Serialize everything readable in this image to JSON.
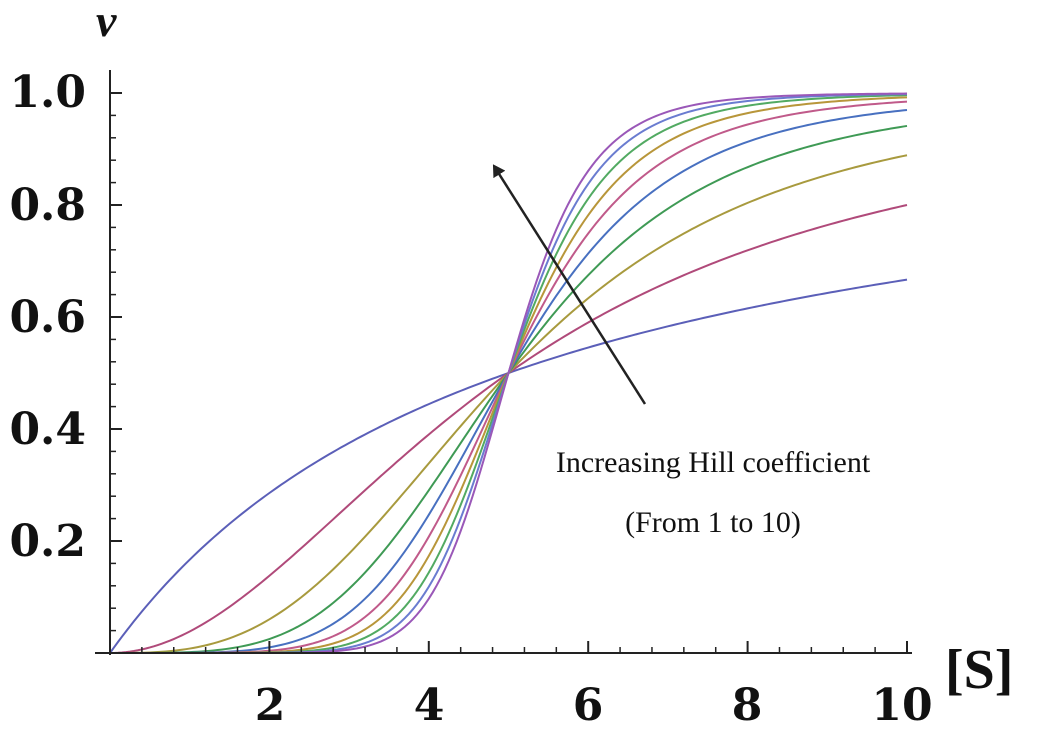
{
  "chart_data": {
    "type": "line",
    "title": "",
    "xlabel": "[S]",
    "ylabel": "v",
    "xlim": [
      0,
      10
    ],
    "ylim": [
      0,
      1
    ],
    "x_ticks": [
      "2",
      "4",
      "6",
      "8",
      "10"
    ],
    "y_ticks": [
      "0.2",
      "0.4",
      "0.6",
      "0.8",
      "1.0"
    ],
    "grid": false,
    "legend": "none",
    "series_function": "v = [S]^n / (5^n + [S]^n)",
    "x_samples": [
      0,
      0.5,
      1,
      1.5,
      2,
      2.5,
      3,
      3.5,
      4,
      4.5,
      5,
      5.5,
      6,
      6.5,
      7,
      7.5,
      8,
      8.5,
      9,
      9.5,
      10
    ],
    "series": [
      {
        "hill_n": 1,
        "color": "#5b5fb8",
        "values": [
          0,
          0.091,
          0.167,
          0.231,
          0.286,
          0.333,
          0.375,
          0.412,
          0.444,
          0.474,
          0.5,
          0.524,
          0.545,
          0.565,
          0.583,
          0.6,
          0.615,
          0.63,
          0.643,
          0.655,
          0.667
        ]
      },
      {
        "hill_n": 2,
        "color": "#b04a7a",
        "values": [
          0,
          0.01,
          0.038,
          0.083,
          0.138,
          0.2,
          0.265,
          0.329,
          0.39,
          0.448,
          0.5,
          0.548,
          0.59,
          0.628,
          0.662,
          0.692,
          0.719,
          0.743,
          0.764,
          0.783,
          0.8
        ]
      },
      {
        "hill_n": 3,
        "color": "#a89a3e",
        "values": [
          0,
          0.001,
          0.008,
          0.026,
          0.06,
          0.111,
          0.178,
          0.255,
          0.339,
          0.422,
          0.5,
          0.571,
          0.633,
          0.687,
          0.733,
          0.771,
          0.803,
          0.831,
          0.854,
          0.873,
          0.889
        ]
      },
      {
        "hill_n": 4,
        "color": "#3f9a55",
        "values": [
          0,
          0,
          0.002,
          0.008,
          0.025,
          0.059,
          0.115,
          0.194,
          0.291,
          0.396,
          0.5,
          0.594,
          0.675,
          0.741,
          0.793,
          0.835,
          0.868,
          0.893,
          0.913,
          0.929,
          0.941
        ]
      },
      {
        "hill_n": 5,
        "color": "#4870c0",
        "values": [
          0,
          0,
          0,
          0.002,
          0.01,
          0.03,
          0.072,
          0.144,
          0.247,
          0.371,
          0.5,
          0.617,
          0.713,
          0.788,
          0.844,
          0.884,
          0.913,
          0.934,
          0.95,
          0.961,
          0.97
        ]
      },
      {
        "hill_n": 6,
        "color": "#c05a8a",
        "values": [
          0,
          0,
          0,
          0.001,
          0.004,
          0.015,
          0.044,
          0.105,
          0.208,
          0.347,
          0.5,
          0.639,
          0.749,
          0.828,
          0.883,
          0.919,
          0.944,
          0.96,
          0.971,
          0.979,
          0.985
        ]
      },
      {
        "hill_n": 7,
        "color": "#b8963a",
        "values": [
          0,
          0,
          0,
          0,
          0.002,
          0.008,
          0.027,
          0.076,
          0.173,
          0.324,
          0.5,
          0.661,
          0.781,
          0.862,
          0.913,
          0.945,
          0.964,
          0.977,
          0.985,
          0.99,
          0.992
        ]
      },
      {
        "hill_n": 8,
        "color": "#52aa62",
        "values": [
          0,
          0,
          0,
          0,
          0.001,
          0.004,
          0.017,
          0.054,
          0.144,
          0.301,
          0.5,
          0.682,
          0.811,
          0.891,
          0.937,
          0.963,
          0.977,
          0.986,
          0.991,
          0.994,
          0.996
        ]
      },
      {
        "hill_n": 9,
        "color": "#6a7cd0",
        "values": [
          0,
          0,
          0,
          0,
          0,
          0.002,
          0.01,
          0.039,
          0.118,
          0.279,
          0.5,
          0.702,
          0.838,
          0.915,
          0.955,
          0.976,
          0.987,
          0.992,
          0.995,
          0.997,
          0.998
        ]
      },
      {
        "hill_n": 10,
        "color": "#9a58b8",
        "values": [
          0,
          0,
          0,
          0,
          0,
          0.001,
          0.006,
          0.028,
          0.097,
          0.259,
          0.5,
          0.722,
          0.861,
          0.932,
          0.966,
          0.983,
          0.991,
          0.995,
          0.997,
          0.998,
          0.999
        ]
      }
    ],
    "annotations": [
      {
        "line1": "Increasing Hill coefficient",
        "line2": "(From 1 to 10)"
      }
    ]
  }
}
